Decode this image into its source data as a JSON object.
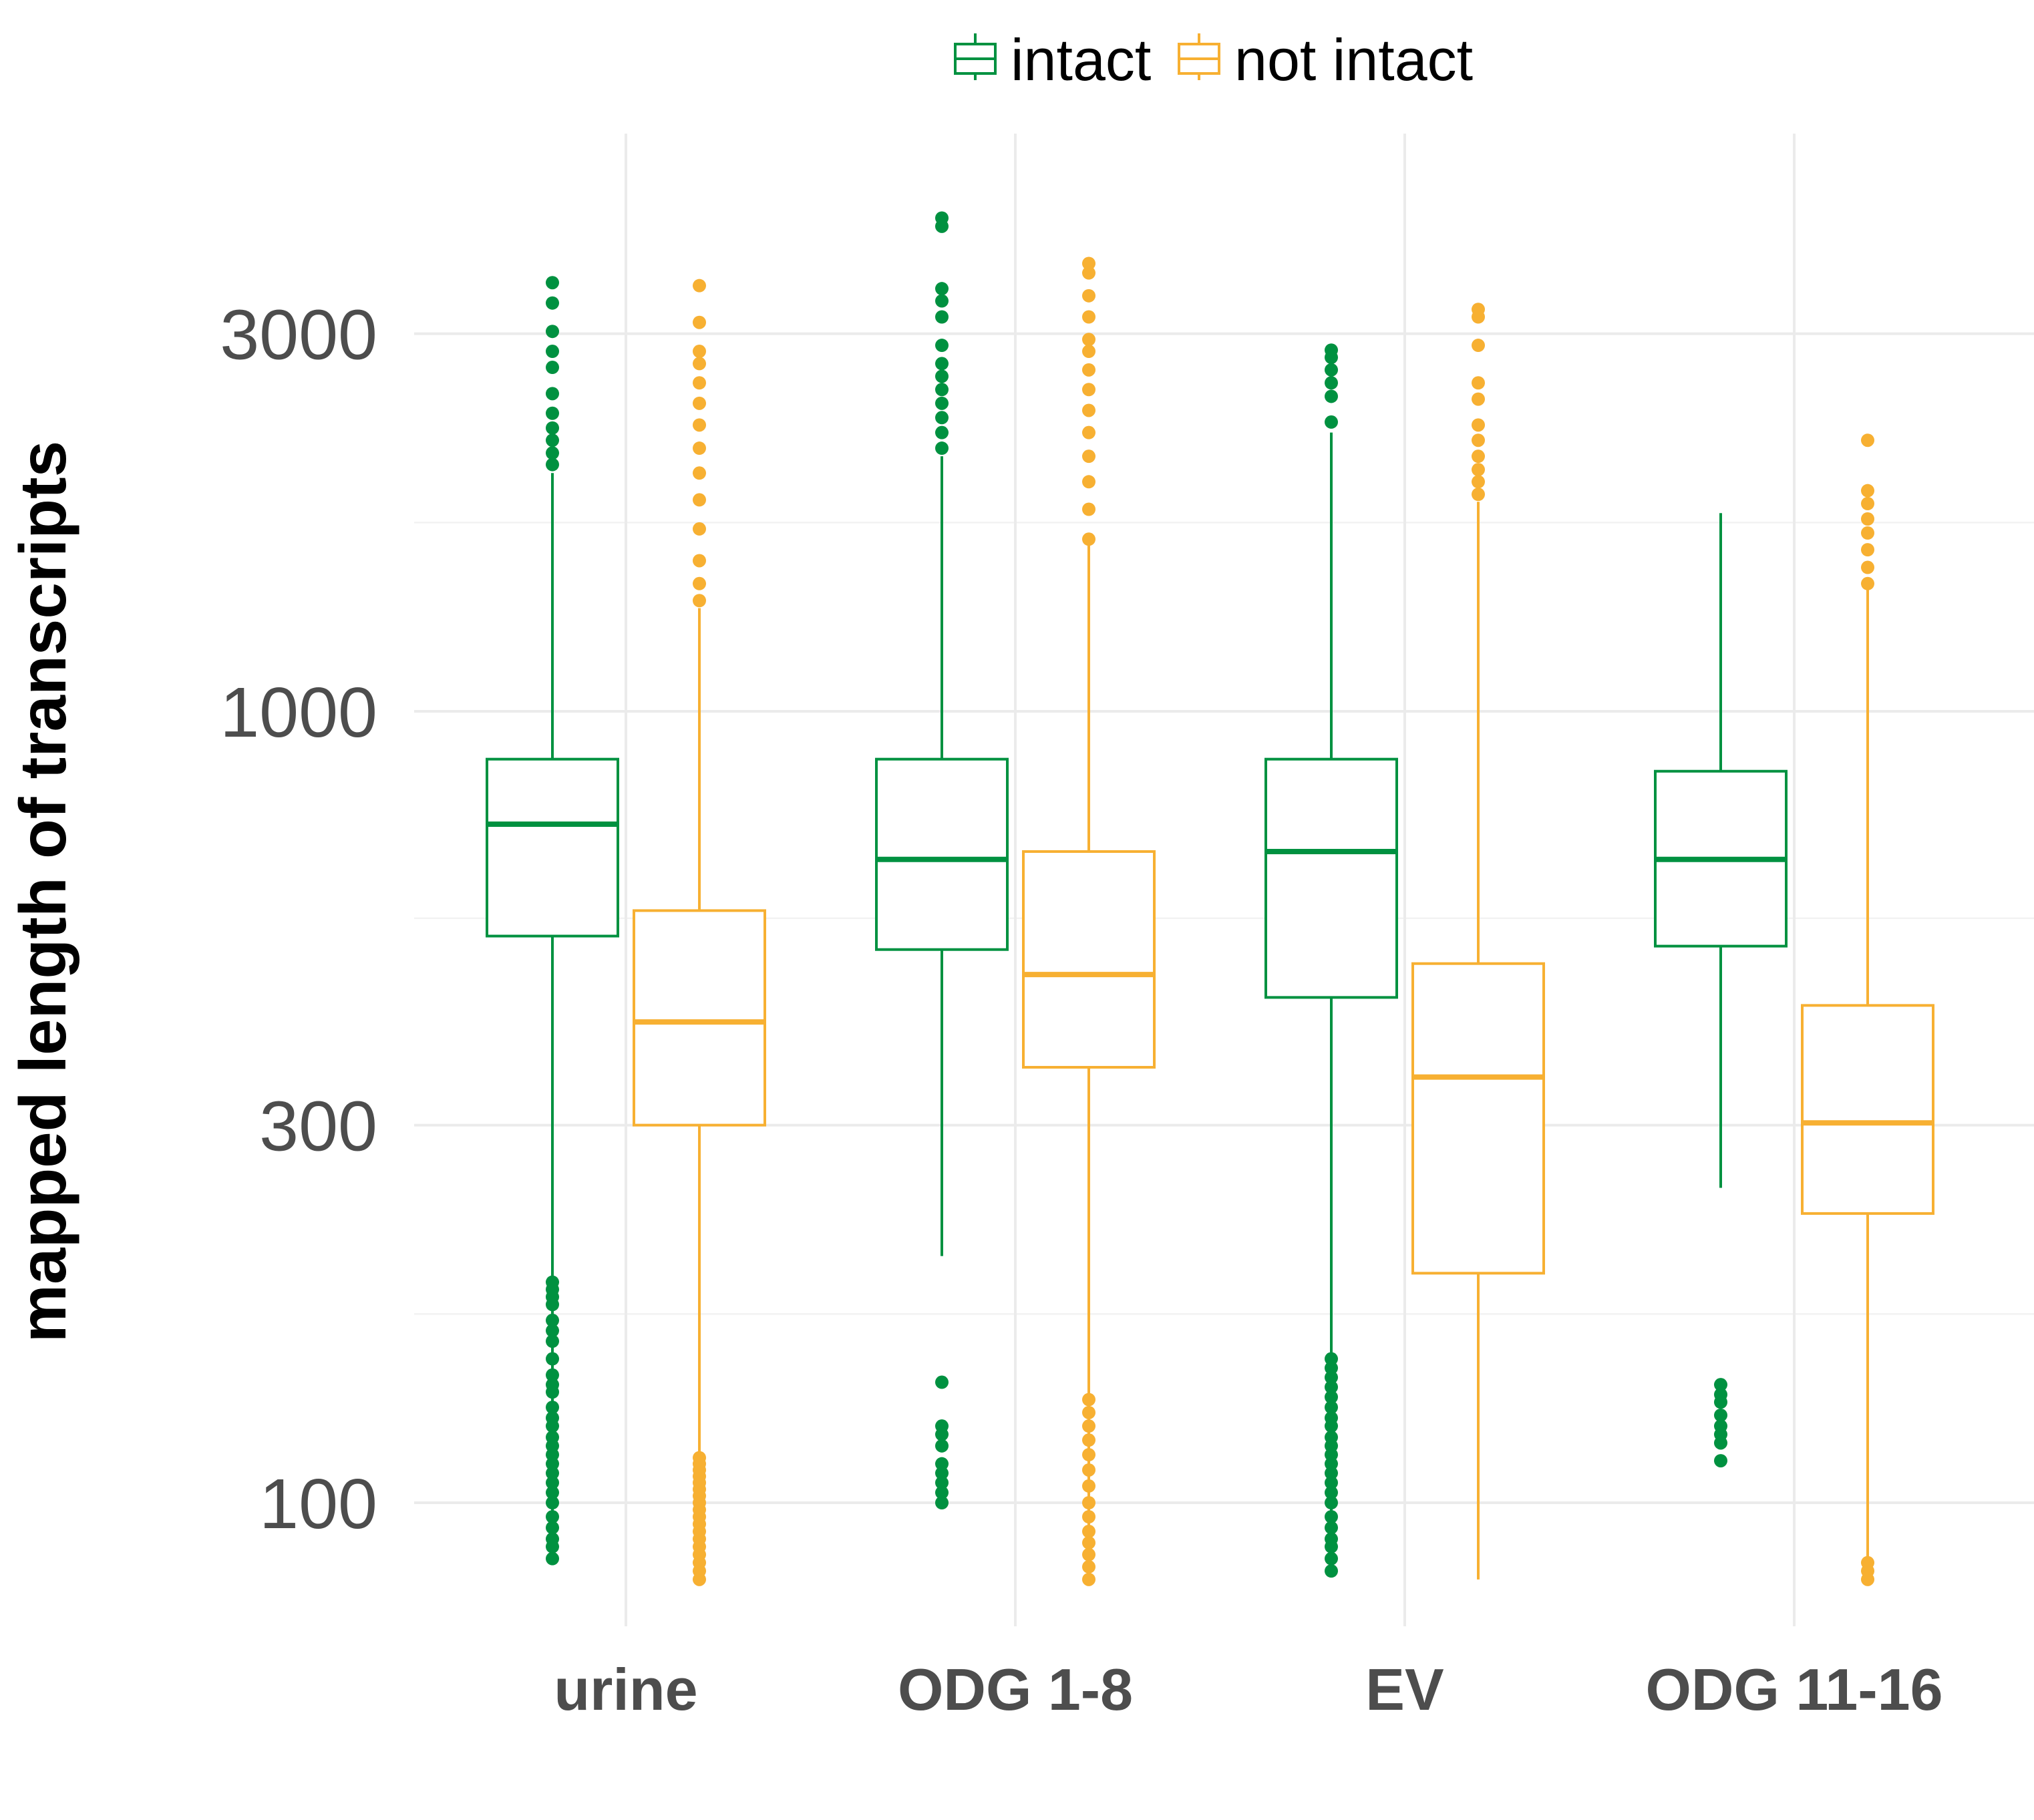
{
  "chart_data": {
    "type": "boxplot",
    "ylabel": "mapped length of transcripts",
    "xlabel": "",
    "y_scale": "log10",
    "ylim": [
      70,
      4300
    ],
    "y_ticks": [
      100,
      300,
      1000,
      3000
    ],
    "y_tick_labels": [
      "100",
      "300",
      "1000",
      "3000"
    ],
    "grid": true,
    "legend_position": "top",
    "categories": [
      "urine",
      "ODG 1-8",
      "EV",
      "ODG 11-16"
    ],
    "series": [
      {
        "name": "intact",
        "color": "#009140",
        "boxes": [
          {
            "whisker_low": 85,
            "q1": 520,
            "median": 720,
            "q3": 870,
            "whisker_high": 2000,
            "outliers": [
              85,
              88,
              90,
              93,
              96,
              100,
              103,
              106,
              109,
              112,
              115,
              118,
              121,
              125,
              128,
              132,
              138,
              141,
              145,
              152,
              160,
              165,
              170,
              178,
              182,
              186,
              190,
              2050,
              2120,
              2200,
              2280,
              2380,
              2520,
              2720,
              2850,
              3020,
              3280,
              3480
            ]
          },
          {
            "whisker_low": 205,
            "q1": 500,
            "median": 650,
            "q3": 870,
            "whisker_high": 2100,
            "outliers": [
              100,
              103,
              106,
              109,
              112,
              118,
              122,
              125,
              142,
              2150,
              2250,
              2350,
              2450,
              2550,
              2650,
              2750,
              2900,
              3150,
              3300,
              3420,
              4100,
              4200
            ]
          },
          {
            "whisker_low": 85,
            "q1": 435,
            "median": 665,
            "q3": 870,
            "whisker_high": 2250,
            "outliers": [
              82,
              85,
              88,
              90,
              93,
              96,
              100,
              103,
              106,
              109,
              112,
              115,
              118,
              121,
              125,
              128,
              132,
              136,
              140,
              144,
              148,
              152,
              2320,
              2500,
              2600,
              2700,
              2800,
              2860
            ]
          },
          {
            "whisker_low": 250,
            "q1": 505,
            "median": 650,
            "q3": 840,
            "whisker_high": 1780,
            "outliers": [
              113,
              119,
              122,
              125,
              129,
              134,
              137,
              141
            ]
          }
        ]
      },
      {
        "name": "not intact",
        "color": "#f7b032",
        "boxes": [
          {
            "whisker_low": 80,
            "q1": 300,
            "median": 405,
            "q3": 560,
            "whisker_high": 1350,
            "outliers": [
              80,
              82,
              84,
              86,
              88,
              90,
              92,
              94,
              96,
              98,
              100,
              102,
              104,
              106,
              108,
              110,
              112,
              114,
              1380,
              1450,
              1550,
              1700,
              1850,
              2000,
              2150,
              2300,
              2450,
              2600,
              2750,
              2850,
              3100,
              3450
            ]
          },
          {
            "whisker_low": 80,
            "q1": 355,
            "median": 465,
            "q3": 665,
            "whisker_high": 1620,
            "outliers": [
              80,
              83,
              86,
              89,
              92,
              96,
              100,
              105,
              110,
              115,
              120,
              125,
              130,
              135,
              1650,
              1800,
              1950,
              2100,
              2250,
              2400,
              2550,
              2700,
              2850,
              2950,
              3150,
              3350,
              3580,
              3680
            ]
          },
          {
            "whisker_low": 80,
            "q1": 195,
            "median": 345,
            "q3": 480,
            "whisker_high": 1840,
            "outliers": [
              1880,
              1950,
              2020,
              2100,
              2200,
              2300,
              2480,
              2600,
              2900,
              3150,
              3220
            ]
          },
          {
            "whisker_low": 80,
            "q1": 232,
            "median": 302,
            "q3": 425,
            "whisker_high": 1430,
            "outliers": [
              80,
              82,
              84,
              1450,
              1520,
              1600,
              1680,
              1750,
              1830,
              1900,
              2200
            ]
          }
        ]
      }
    ]
  }
}
